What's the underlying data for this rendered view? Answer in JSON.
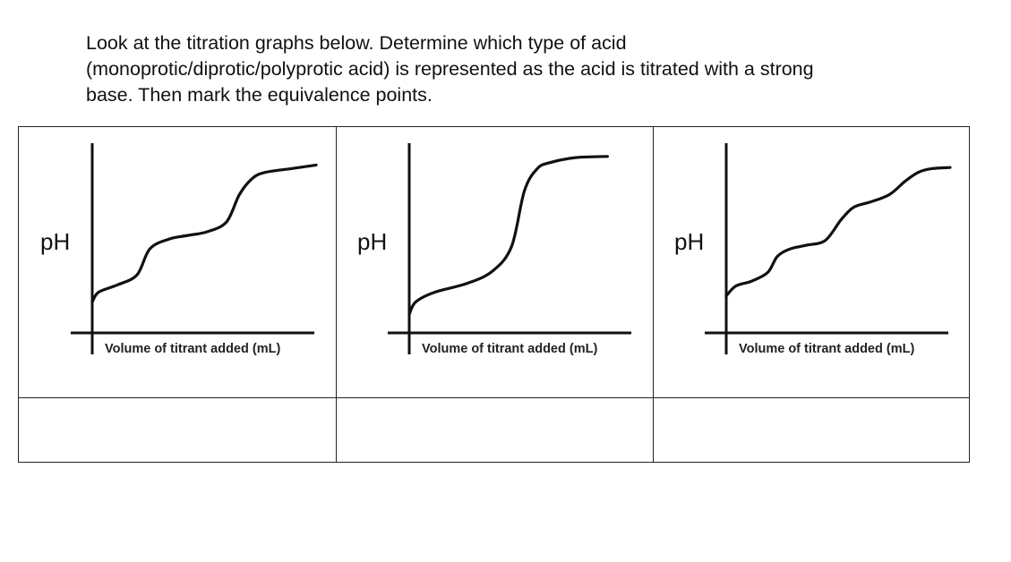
{
  "instructions": "Look at the titration graphs below. Determine which type of acid\n(monoprotic/diprotic/polyprotic acid) is represented as the acid is titrated with a strong\nbase. Then mark the equivalence points.",
  "chart_data": [
    {
      "type": "line",
      "ylabel": "pH",
      "xlabel": "Volume of titrant added (mL)",
      "grid": false,
      "legend": "none",
      "steps": 2,
      "x": [
        0,
        2,
        8,
        14,
        18,
        24,
        30,
        36,
        42,
        46,
        50,
        54,
        62,
        70
      ],
      "y": [
        2.5,
        3.3,
        3.9,
        4.7,
        6.8,
        7.6,
        7.9,
        8.2,
        9.0,
        11.2,
        12.5,
        13.0,
        13.3,
        13.6
      ]
    },
    {
      "type": "line",
      "ylabel": "pH",
      "xlabel": "Volume of titrant added (mL)",
      "grid": false,
      "legend": "none",
      "steps": 1,
      "x": [
        0,
        2,
        8,
        18,
        26,
        32,
        36,
        40,
        44,
        52,
        62
      ],
      "y": [
        1.5,
        2.5,
        3.3,
        4.0,
        5.0,
        7.0,
        11.5,
        13.3,
        13.8,
        14.2,
        14.3
      ]
    },
    {
      "type": "line",
      "ylabel": "pH",
      "xlabel": "Volume of titrant added (mL)",
      "grid": false,
      "legend": "none",
      "steps": 3,
      "x": [
        0,
        3,
        8,
        13,
        16,
        20,
        25,
        31,
        36,
        40,
        45,
        51,
        56,
        60,
        64,
        70
      ],
      "y": [
        3.0,
        3.8,
        4.2,
        4.9,
        6.2,
        6.8,
        7.1,
        7.5,
        9.2,
        10.2,
        10.6,
        11.2,
        12.3,
        13.0,
        13.3,
        13.4
      ]
    }
  ]
}
